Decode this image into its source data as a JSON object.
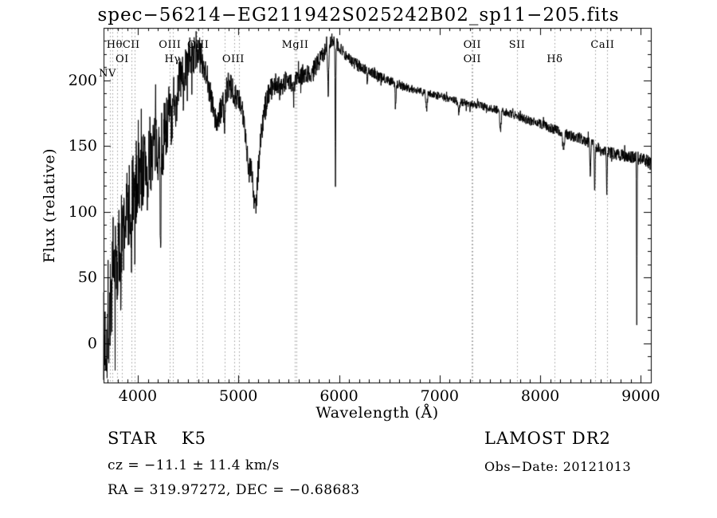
{
  "footer": {
    "class_label": "STAR    K5",
    "survey": "LAMOST DR2",
    "cz": "cz = −11.1 ± 11.4 km/s",
    "obs_date": "Obs−Date: 20121013",
    "coords": "RA = 319.97272, DEC = −0.68683"
  },
  "chart_data": {
    "type": "line",
    "title": "spec−56214−EG211942S025242B02_sp11−205.fits",
    "xlabel": "Wavelength (Å)",
    "ylabel": "Flux (relative)",
    "xlim": [
      3660,
      9100
    ],
    "ylim": [
      -30,
      240
    ],
    "xticks": [
      4000,
      5000,
      6000,
      7000,
      8000,
      9000
    ],
    "yticks": [
      0,
      50,
      100,
      150,
      200
    ],
    "x_minor_step": 100,
    "y_minor_step": 10,
    "grid": "dotted-vertical-line-markers",
    "legend": "none",
    "line_color": "#000000",
    "grid_color": "#999999",
    "frame_color": "#000000",
    "line_markers": [
      {
        "label": "NV",
        "wavelength": 3700,
        "row": 3
      },
      {
        "label": "Hθ",
        "wavelength": 3770,
        "row": 1
      },
      {
        "label": "OI",
        "wavelength": 3845,
        "row": 2
      },
      {
        "label": "CII",
        "wavelength": 3935,
        "row": 1
      },
      {
        "label": "OIII",
        "wavelength": 4320,
        "row": 1
      },
      {
        "label": "Hγ",
        "wavelength": 4345,
        "row": 2
      },
      {
        "label": "CIII",
        "wavelength": 4600,
        "row": 1
      },
      {
        "label": "OIII",
        "wavelength": 4950,
        "row": 2
      },
      {
        "label": "MgII",
        "wavelength": 5565,
        "row": 1
      },
      {
        "label": "OII",
        "wavelength": 7325,
        "row": 1
      },
      {
        "label": "OII",
        "wavelength": 7325,
        "row": 2
      },
      {
        "label": "SII",
        "wavelength": 7770,
        "row": 1
      },
      {
        "label": "Hδ",
        "wavelength": 8145,
        "row": 2
      },
      {
        "label": "CaII",
        "wavelength": 8620,
        "row": 1
      }
    ],
    "dotted_lines": [
      3727,
      3750,
      3798,
      3845,
      3935,
      3970,
      4320,
      4345,
      4585,
      4640,
      4861,
      4959,
      5007,
      5560,
      5580,
      7320,
      7330,
      7770,
      8145,
      8542,
      8662
    ],
    "spectrum": {
      "seed": 7,
      "step": 2.5,
      "continuum": [
        [
          3660,
          0
        ],
        [
          3700,
          8
        ],
        [
          3730,
          30
        ],
        [
          3760,
          50
        ],
        [
          3800,
          62
        ],
        [
          3850,
          82
        ],
        [
          3900,
          102
        ],
        [
          3950,
          116
        ],
        [
          4000,
          126
        ],
        [
          4060,
          133
        ],
        [
          4120,
          143
        ],
        [
          4180,
          152
        ],
        [
          4240,
          150
        ],
        [
          4300,
          172
        ],
        [
          4360,
          190
        ],
        [
          4420,
          202
        ],
        [
          4480,
          210
        ],
        [
          4540,
          218
        ],
        [
          4600,
          222
        ],
        [
          4650,
          214
        ],
        [
          4690,
          203
        ],
        [
          4730,
          185
        ],
        [
          4770,
          168
        ],
        [
          4810,
          172
        ],
        [
          4850,
          185
        ],
        [
          4900,
          196
        ],
        [
          4950,
          192
        ],
        [
          5000,
          185
        ],
        [
          5050,
          172
        ],
        [
          5100,
          148
        ],
        [
          5150,
          128
        ],
        [
          5200,
          142
        ],
        [
          5250,
          172
        ],
        [
          5300,
          192
        ],
        [
          5360,
          197
        ],
        [
          5420,
          196
        ],
        [
          5480,
          200
        ],
        [
          5540,
          198
        ],
        [
          5600,
          202
        ],
        [
          5660,
          206
        ],
        [
          5720,
          205
        ],
        [
          5780,
          212
        ],
        [
          5840,
          220
        ],
        [
          5900,
          228
        ],
        [
          5950,
          232
        ],
        [
          6000,
          226
        ],
        [
          6060,
          220
        ],
        [
          6120,
          215
        ],
        [
          6200,
          211
        ],
        [
          6300,
          207
        ],
        [
          6400,
          203
        ],
        [
          6500,
          200
        ],
        [
          6600,
          197
        ],
        [
          6700,
          194
        ],
        [
          6800,
          192
        ],
        [
          6900,
          190
        ],
        [
          7000,
          188
        ],
        [
          7100,
          186
        ],
        [
          7200,
          184
        ],
        [
          7300,
          182
        ],
        [
          7400,
          181
        ],
        [
          7500,
          179
        ],
        [
          7600,
          177
        ],
        [
          7700,
          175
        ],
        [
          7800,
          172
        ],
        [
          7900,
          169
        ],
        [
          8000,
          167
        ],
        [
          8100,
          164
        ],
        [
          8200,
          161
        ],
        [
          8300,
          158
        ],
        [
          8400,
          156
        ],
        [
          8500,
          152
        ],
        [
          8600,
          148
        ],
        [
          8700,
          145
        ],
        [
          8800,
          143
        ],
        [
          8900,
          142
        ],
        [
          9000,
          141
        ],
        [
          9060,
          139
        ],
        [
          9100,
          136
        ]
      ],
      "noise": [
        [
          3660,
          40
        ],
        [
          3800,
          38
        ],
        [
          3950,
          34
        ],
        [
          4100,
          30
        ],
        [
          4250,
          26
        ],
        [
          4400,
          18
        ],
        [
          4550,
          14
        ],
        [
          4700,
          12
        ],
        [
          4850,
          11
        ],
        [
          5000,
          10
        ],
        [
          5200,
          11
        ],
        [
          5400,
          8
        ],
        [
          5600,
          8
        ],
        [
          5800,
          7
        ],
        [
          6000,
          5
        ],
        [
          6200,
          4.5
        ],
        [
          6500,
          3.5
        ],
        [
          7000,
          3
        ],
        [
          7500,
          3
        ],
        [
          8000,
          3.5
        ],
        [
          8400,
          4
        ],
        [
          8700,
          4.5
        ],
        [
          9100,
          5
        ]
      ],
      "absorptions": [
        [
          3933,
          45,
          6
        ],
        [
          3968,
          40,
          6
        ],
        [
          4101,
          25,
          6
        ],
        [
          4227,
          60,
          6
        ],
        [
          4340,
          28,
          6
        ],
        [
          4383,
          22,
          5
        ],
        [
          4455,
          18,
          5
        ],
        [
          4861,
          22,
          6
        ],
        [
          5100,
          15,
          12
        ],
        [
          5170,
          28,
          18
        ],
        [
          5550,
          18,
          4
        ],
        [
          5893,
          38,
          5
        ],
        [
          5965,
          112,
          3
        ],
        [
          6280,
          10,
          4
        ],
        [
          6563,
          16,
          5
        ],
        [
          6870,
          12,
          7
        ],
        [
          7190,
          8,
          8
        ],
        [
          7605,
          14,
          7
        ],
        [
          8230,
          12,
          9
        ],
        [
          8498,
          26,
          4
        ],
        [
          8542,
          36,
          4
        ],
        [
          8662,
          30,
          4
        ],
        [
          8960,
          125,
          2.5
        ]
      ]
    }
  }
}
